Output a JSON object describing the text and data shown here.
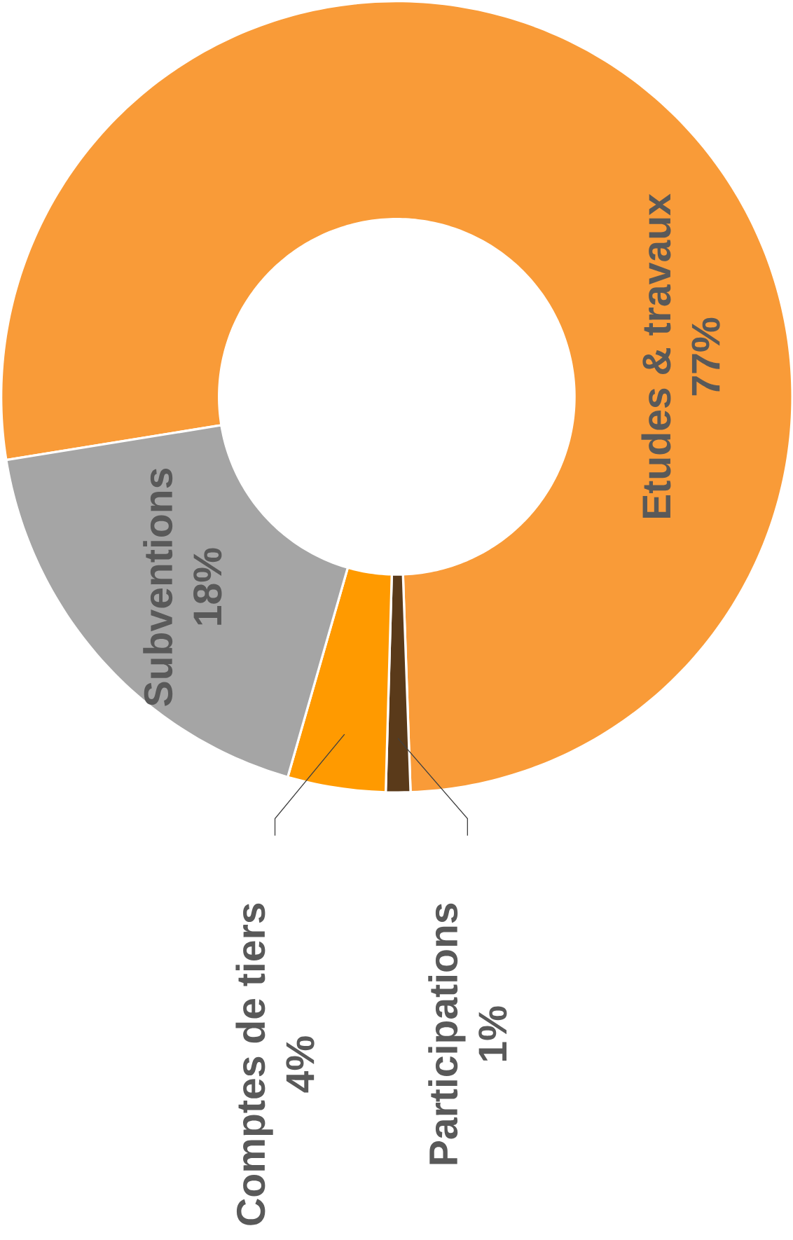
{
  "chart_data": {
    "type": "donut",
    "categories": [
      "Etudes & travaux",
      "Participations",
      "Comptes de tiers",
      "Subventions"
    ],
    "values": [
      77,
      1,
      4,
      18
    ],
    "value_labels": [
      "77%",
      "1%",
      "4%",
      "18%"
    ],
    "colors": [
      "#f99b38",
      "#5a3a1a",
      "#ff9a00",
      "#a5a5a5"
    ]
  }
}
